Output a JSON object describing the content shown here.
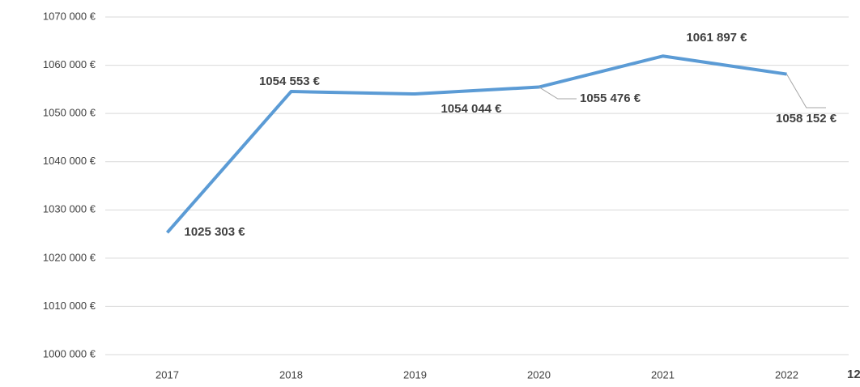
{
  "chart_data": {
    "type": "line",
    "categories": [
      "2017",
      "2018",
      "2019",
      "2020",
      "2021",
      "2022"
    ],
    "series": [
      {
        "color": "#5b9bd5",
        "values": [
          1025303,
          1054553,
          1054044,
          1055476,
          1061897,
          1058152
        ],
        "value_labels": [
          "1025 303 €",
          "1054 553 €",
          "1054 044 €",
          "1055 476 €",
          "1061 897 €",
          "1058 152 €"
        ]
      }
    ],
    "ylim": [
      1000000,
      1070000
    ],
    "yticks": [
      {
        "value": 1000000,
        "label": "1000 000 €"
      },
      {
        "value": 1010000,
        "label": "1010 000 €"
      },
      {
        "value": 1020000,
        "label": "1020 000 €"
      },
      {
        "value": 1030000,
        "label": "1030 000 €"
      },
      {
        "value": 1040000,
        "label": "1040 000 €"
      },
      {
        "value": 1050000,
        "label": "1050 000 €"
      },
      {
        "value": 1060000,
        "label": "1060 000 €"
      },
      {
        "value": 1070000,
        "label": "1070 000 €"
      }
    ],
    "grid": true,
    "annotation": "12"
  }
}
